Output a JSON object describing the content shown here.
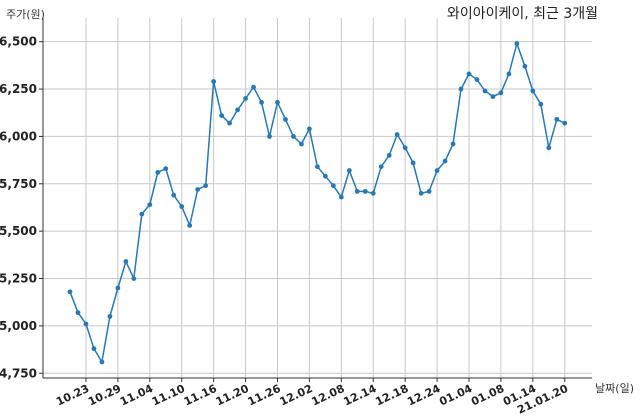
{
  "chart_data": {
    "type": "line",
    "title": "와이아이케이, 최근 3개월",
    "ylabel": "주가(원)",
    "xlabel": "날짜(일)",
    "ylim": [
      4725,
      6625
    ],
    "yticks": [
      4750,
      5000,
      5250,
      5500,
      5750,
      6000,
      6250,
      6500
    ],
    "ytick_labels": [
      "4,750",
      "5,000",
      "5,250",
      "5,500",
      "5,750",
      "6,000",
      "6,250",
      "6,500"
    ],
    "xtick_labels": [
      "10.23",
      "10.29",
      "11.04",
      "11.10",
      "11.16",
      "11.20",
      "11.26",
      "12.02",
      "12.08",
      "12.14",
      "12.18",
      "12.24",
      "01.04",
      "01.08",
      "01.14",
      "21.01.20"
    ],
    "xtick_indices": [
      2,
      6,
      10,
      14,
      18,
      22,
      26,
      30,
      34,
      38,
      42,
      46,
      50,
      54,
      58,
      62
    ],
    "grid": true,
    "line_color": "#2878b5",
    "series": [
      {
        "values": [
          5180,
          5070,
          5010,
          4880,
          4810,
          5050,
          5200,
          5340,
          5250,
          5590,
          5640,
          5810,
          5830,
          5690,
          5630,
          5530,
          5720,
          5740,
          6290,
          6110,
          6070,
          6140,
          6200,
          6260,
          6180,
          6000,
          6180,
          6090,
          6000,
          5960,
          6040,
          5840,
          5790,
          5740,
          5680,
          5820,
          5710,
          5710,
          5700,
          5840,
          5900,
          6010,
          5940,
          5860,
          5700,
          5710,
          5820,
          5870,
          5960,
          6250,
          6330,
          6300,
          6240,
          6210,
          6230,
          6330,
          6490,
          6370,
          6240,
          6170,
          5940,
          6090,
          6070
        ]
      }
    ]
  }
}
